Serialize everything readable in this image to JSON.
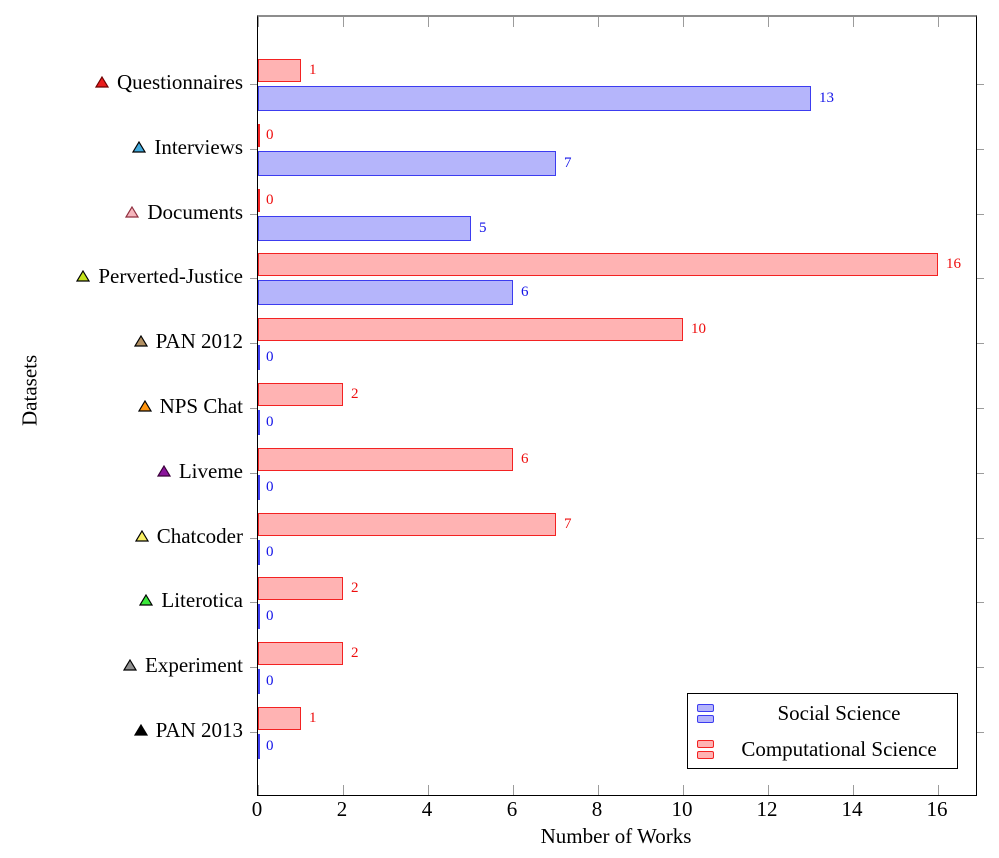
{
  "chart_data": {
    "type": "bar",
    "orientation": "horizontal",
    "title": "",
    "xlabel": "Number of Works",
    "ylabel": "Datasets",
    "xlim": [
      0,
      16.9
    ],
    "xticks": [
      0,
      2,
      4,
      6,
      8,
      10,
      12,
      14,
      16
    ],
    "grid": false,
    "legend_position": "bottom-right",
    "categories": [
      "Questionnaires",
      "Interviews",
      "Documents",
      "Perverted-Justice",
      "PAN 2012",
      "NPS Chat",
      "Liveme",
      "Chatcoder",
      "Literotica",
      "Experiment",
      "PAN 2013"
    ],
    "series": [
      {
        "name": "Computational Science",
        "row": "top",
        "fill": "#ffb3b3",
        "stroke": "#f32222",
        "label_color": "#ee0d0d",
        "values": [
          1,
          0,
          0,
          16,
          10,
          2,
          6,
          7,
          2,
          2,
          1
        ]
      },
      {
        "name": "Social Science",
        "row": "bottom",
        "fill": "#b5b5fb",
        "stroke": "#3c3cf0",
        "label_color": "#1414e8",
        "values": [
          13,
          7,
          5,
          6,
          0,
          0,
          0,
          0,
          0,
          0,
          0
        ]
      }
    ],
    "category_markers": [
      {
        "category": "Questionnaires",
        "shape": "triangle",
        "fill": "#ea1c1c",
        "stroke": "#6e0000"
      },
      {
        "category": "Interviews",
        "shape": "triangle",
        "fill": "#41a9dc",
        "stroke": "#000000"
      },
      {
        "category": "Documents",
        "shape": "triangle",
        "fill": "#f6b6bd",
        "stroke": "#8f2f3f"
      },
      {
        "category": "Perverted-Justice",
        "shape": "triangle",
        "fill": "#c4e21c",
        "stroke": "#000000"
      },
      {
        "category": "PAN 2012",
        "shape": "triangle",
        "fill": "#b18f62",
        "stroke": "#000000"
      },
      {
        "category": "NPS Chat",
        "shape": "triangle",
        "fill": "#ff940e",
        "stroke": "#000000"
      },
      {
        "category": "Liveme",
        "shape": "triangle",
        "fill": "#8a149b",
        "stroke": "#3a003a"
      },
      {
        "category": "Chatcoder",
        "shape": "triangle",
        "fill": "#f8ef63",
        "stroke": "#000000"
      },
      {
        "category": "Literotica",
        "shape": "triangle",
        "fill": "#3ae83a",
        "stroke": "#000000"
      },
      {
        "category": "Experiment",
        "shape": "triangle",
        "fill": "#8f8f8f",
        "stroke": "#000000"
      },
      {
        "category": "PAN 2013",
        "shape": "triangle",
        "fill": "#000000",
        "stroke": "#000000"
      }
    ],
    "legend": [
      {
        "label": "Social Science",
        "fill": "#b5b5fb",
        "stroke": "#3c3cf0"
      },
      {
        "label": "Computational Science",
        "fill": "#ffb3b3",
        "stroke": "#f32222"
      }
    ],
    "axis_colors": {
      "frame": "#000000",
      "top_frame": "#8d8d8d",
      "tick": "#9c9c9c"
    }
  }
}
